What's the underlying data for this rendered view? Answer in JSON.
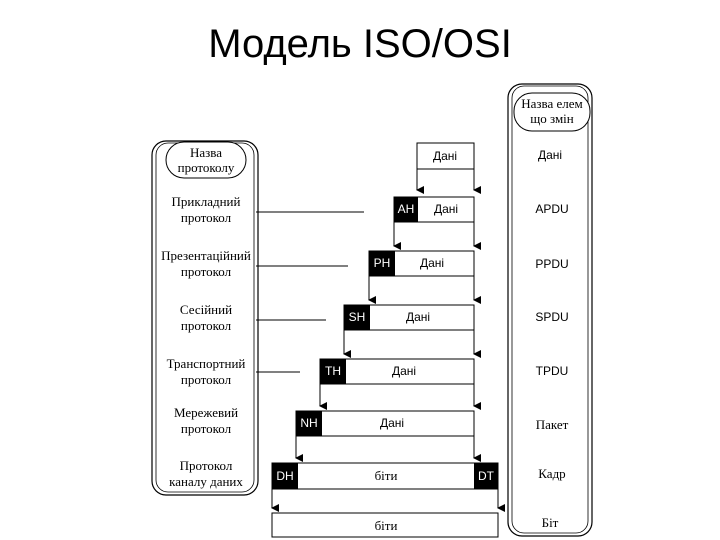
{
  "title": "Модель ISO/OSI",
  "left_header": [
    "Назва",
    "протоколу"
  ],
  "right_header": [
    "Назва елем",
    "що змін"
  ],
  "layers": [
    {
      "name": [
        "Прикладний",
        "протокол"
      ],
      "header": "AH",
      "payload": "Дані",
      "unit": "APDU"
    },
    {
      "name": [
        "Презентаційний",
        "протокол"
      ],
      "header": "PH",
      "payload": "Дані",
      "unit": "PPDU"
    },
    {
      "name": [
        "Сесійний",
        "протокол"
      ],
      "header": "SH",
      "payload": "Дані",
      "unit": "SPDU"
    },
    {
      "name": [
        "Транспортний",
        "протокол"
      ],
      "header": "TH",
      "payload": "Дані",
      "unit": "TPDU"
    },
    {
      "name": [
        "Мережевий",
        "протокол"
      ],
      "header": "NH",
      "payload": "Дані",
      "unit": "Пакет"
    },
    {
      "name": [
        "Протокол",
        "каналу даних"
      ],
      "header": "DH",
      "payload": "біти",
      "trailer": "DT",
      "unit": "Кадр"
    }
  ],
  "top_box": {
    "payload": "Дані",
    "unit": "Дані"
  },
  "bottom_box": {
    "payload": "біти",
    "unit": "Біт"
  }
}
